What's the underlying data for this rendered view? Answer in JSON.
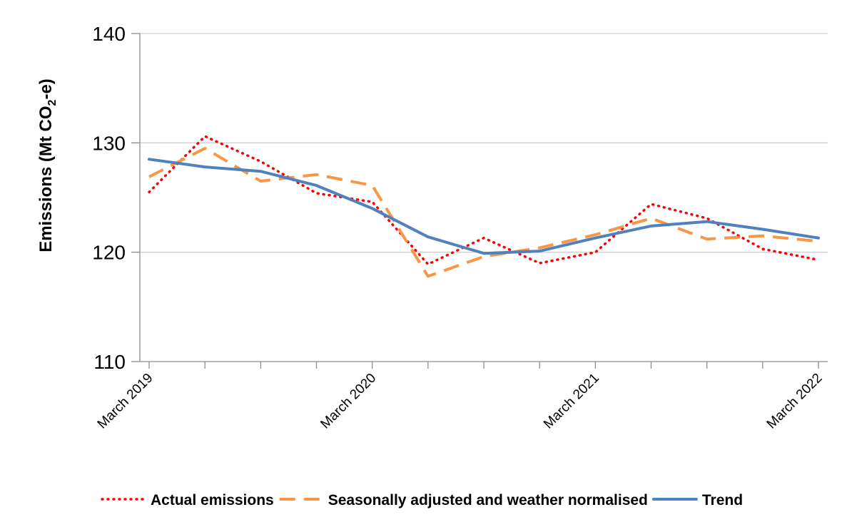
{
  "chart_data": {
    "type": "line",
    "ylabel_prefix": "Emissions (Mt CO",
    "ylabel_subscript": "2",
    "ylabel_suffix": "-e)",
    "ylim": [
      110,
      140
    ],
    "yticks": [
      110,
      120,
      130,
      140
    ],
    "grid": true,
    "legend_position": "bottom",
    "xlim": [
      "2019-03",
      "2022-03"
    ],
    "xtick_labels": [
      {
        "x": "2019-03",
        "label": "March 2019"
      },
      {
        "x": "2020-03",
        "label": "March 2020"
      },
      {
        "x": "2021-03",
        "label": "March 2021"
      },
      {
        "x": "2022-03",
        "label": "March 2022"
      }
    ],
    "minor_ticks": [
      "2019-06",
      "2019-09",
      "2019-12",
      "2020-06",
      "2020-09",
      "2020-12",
      "2021-06",
      "2021-09",
      "2021-12"
    ],
    "x": [
      "2019-03",
      "2019-06",
      "2019-09",
      "2019-12",
      "2020-03",
      "2020-06",
      "2020-09",
      "2020-12",
      "2021-03",
      "2021-06",
      "2021-09",
      "2021-12",
      "2022-03"
    ],
    "series": [
      {
        "name": "Actual emissions",
        "color": "#ff0000",
        "style": "dotted",
        "values": [
          125.5,
          130.6,
          128.3,
          125.4,
          124.6,
          118.9,
          121.3,
          119.0,
          120.0,
          124.4,
          123.1,
          120.3,
          119.3
        ]
      },
      {
        "name": "Seasonally adjusted and weather normalised",
        "color": "#f79646",
        "style": "dashed",
        "values": [
          126.9,
          129.5,
          126.5,
          127.1,
          126.1,
          117.8,
          119.6,
          120.4,
          121.6,
          123.1,
          121.2,
          121.5,
          121.0
        ]
      },
      {
        "name": "Trend",
        "color": "#4f81bd",
        "style": "solid",
        "values": [
          128.5,
          127.8,
          127.4,
          126.1,
          124.0,
          121.4,
          119.9,
          120.1,
          121.3,
          122.4,
          122.8,
          122.1,
          121.3
        ]
      }
    ]
  }
}
